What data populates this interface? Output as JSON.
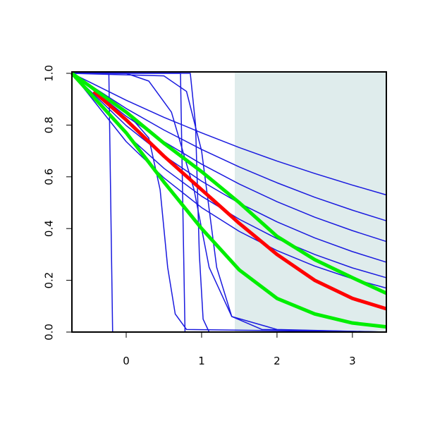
{
  "chart_data": {
    "type": "line",
    "xlim": [
      -0.72,
      3.45
    ],
    "ylim": [
      0,
      1
    ],
    "xticks": [
      0,
      1,
      2,
      3
    ],
    "yticks": [
      {
        "value": 0,
        "label": "0.0"
      },
      0.2,
      0.4,
      0.6,
      0.8,
      {
        "value": 1,
        "label": "1.0"
      }
    ],
    "shaded_region": {
      "x": [
        1.44,
        3.45
      ],
      "color": "#dfecec"
    },
    "series": [
      {
        "color": "#1a1adf",
        "line_width": 1.5,
        "x": [
          -0.72,
          0,
          0.5,
          1,
          1.5,
          2,
          2.5,
          3,
          3.45
        ],
        "values": [
          1,
          0.896,
          0.83,
          0.77,
          0.713,
          0.661,
          0.613,
          0.568,
          0.53
        ]
      },
      {
        "color": "#1a1adf",
        "line_width": 1.5,
        "x": [
          -0.72,
          0,
          0.5,
          1,
          1.5,
          2,
          2.5,
          3,
          3.45
        ],
        "values": [
          1,
          0.864,
          0.781,
          0.706,
          0.638,
          0.577,
          0.521,
          0.471,
          0.43
        ]
      },
      {
        "color": "#1a1adf",
        "line_width": 1.5,
        "x": [
          -0.72,
          0,
          0.5,
          1,
          1.5,
          2,
          2.5,
          3,
          3.45
        ],
        "values": [
          1,
          0.834,
          0.736,
          0.649,
          0.572,
          0.504,
          0.444,
          0.392,
          0.35
        ]
      },
      {
        "color": "#1a1adf",
        "line_width": 1.5,
        "x": [
          -0.72,
          0,
          0.5,
          1,
          1.5,
          2,
          2.5,
          3,
          3.45
        ],
        "values": [
          1,
          0.798,
          0.682,
          0.583,
          0.498,
          0.426,
          0.364,
          0.311,
          0.27
        ]
      },
      {
        "color": "#1a1adf",
        "line_width": 1.5,
        "x": [
          -0.72,
          0,
          0.5,
          1,
          1.5,
          2,
          2.5,
          3,
          3.45
        ],
        "values": [
          1,
          0.764,
          0.633,
          0.525,
          0.436,
          0.361,
          0.3,
          0.248,
          0.21
        ]
      },
      {
        "color": "#1a1adf",
        "line_width": 1.5,
        "x": [
          -0.72,
          0,
          0.5,
          1,
          1.5,
          2,
          2.5,
          3,
          3.45
        ],
        "values": [
          1,
          0.736,
          0.596,
          0.481,
          0.389,
          0.315,
          0.255,
          0.206,
          0.17
        ]
      },
      {
        "color": "#1a1adf",
        "line_width": 1.5,
        "x": [
          -0.72,
          -0.23,
          -0.18,
          3.45
        ],
        "values": [
          1,
          1,
          0,
          0
        ]
      },
      {
        "color": "#1a1adf",
        "line_width": 1.5,
        "x": [
          -0.72,
          0.72,
          0.78,
          3.45
        ],
        "values": [
          1,
          1,
          0,
          0
        ]
      },
      {
        "color": "#1a1adf",
        "line_width": 1.5,
        "x": [
          -0.72,
          0.85,
          0.92,
          0.97,
          1.02,
          1.1,
          3.45
        ],
        "values": [
          1,
          1,
          0.8,
          0.3,
          0.05,
          0,
          0
        ]
      },
      {
        "color": "#1a1adf",
        "line_width": 1.5,
        "x": [
          -0.72,
          0.5,
          0.8,
          1,
          1.2,
          1.4,
          1.8,
          3.45
        ],
        "values": [
          1,
          0.99,
          0.93,
          0.7,
          0.25,
          0.06,
          0.01,
          0
        ]
      },
      {
        "color": "#1a1adf",
        "line_width": 1.5,
        "x": [
          -0.72,
          0,
          0.3,
          0.45,
          0.55,
          0.65,
          0.8,
          3.45
        ],
        "values": [
          1,
          0.85,
          0.75,
          0.55,
          0.25,
          0.07,
          0.01,
          0
        ]
      },
      {
        "color": "#1a1adf",
        "line_width": 1.5,
        "x": [
          -0.72,
          0,
          0.3,
          0.6,
          0.9,
          1.1,
          1.4,
          2,
          3.45
        ],
        "values": [
          1,
          1,
          0.97,
          0.85,
          0.55,
          0.25,
          0.06,
          0.01,
          0
        ]
      },
      {
        "color": "#ff0000",
        "line_width": 5,
        "x": [
          -0.43,
          0,
          0.5,
          1,
          1.5,
          2,
          2.5,
          3,
          3.45
        ],
        "values": [
          0.93,
          0.82,
          0.68,
          0.55,
          0.42,
          0.3,
          0.2,
          0.13,
          0.09
        ]
      },
      {
        "color": "#00ee00",
        "line_width": 5,
        "x": [
          -0.72,
          0,
          0.5,
          1,
          1.5,
          2,
          2.5,
          3,
          3.45
        ],
        "values": [
          1,
          0.85,
          0.73,
          0.62,
          0.5,
          0.37,
          0.28,
          0.21,
          0.15
        ]
      },
      {
        "color": "#00ee00",
        "line_width": 5,
        "x": [
          -0.72,
          0,
          0.5,
          1,
          1.5,
          2,
          2.5,
          3,
          3.45
        ],
        "values": [
          1,
          0.77,
          0.58,
          0.4,
          0.24,
          0.13,
          0.07,
          0.035,
          0.02
        ]
      }
    ]
  }
}
